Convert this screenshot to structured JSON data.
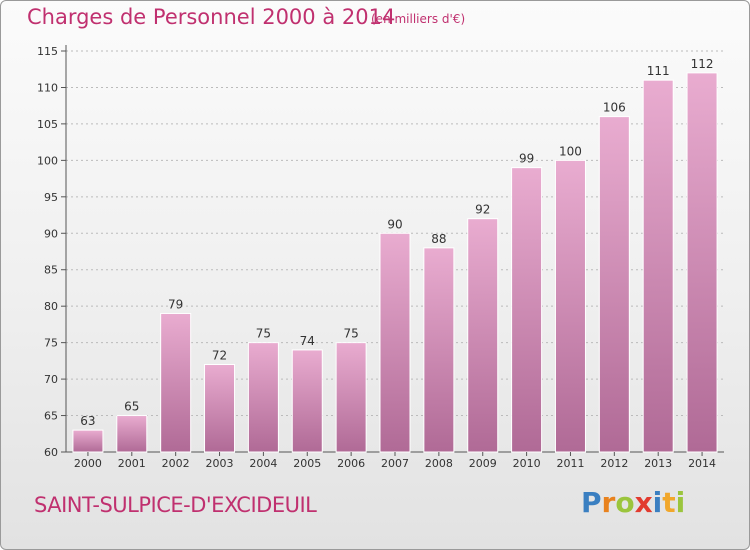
{
  "title": "Charges de Personnel 2000 à 2014",
  "subtitle": "(en milliers d'€)",
  "commune": "SAINT-SULPICE-D'EXCIDEUIL",
  "logo": {
    "text": "Proxiti",
    "letter_colors": [
      "#3a7fc1",
      "#e8821e",
      "#9bc53d",
      "#e23b2f",
      "#3a7fc1",
      "#f1a72b",
      "#9bc53d"
    ]
  },
  "colors": {
    "title": "#c0306f",
    "bar_top": "#e9acd0",
    "bar_bottom": "#b06a96",
    "axis": "#555555",
    "grid": "#bbbbbb"
  },
  "chart_data": {
    "type": "bar",
    "title": "Charges de Personnel 2000 à 2014",
    "categories": [
      "2000",
      "2001",
      "2002",
      "2003",
      "2004",
      "2005",
      "2006",
      "2007",
      "2008",
      "2009",
      "2010",
      "2011",
      "2012",
      "2013",
      "2014"
    ],
    "values": [
      63,
      65,
      79,
      72,
      75,
      74,
      75,
      90,
      88,
      92,
      99,
      100,
      106,
      111,
      112
    ],
    "ylim": [
      60,
      115
    ],
    "yticks": [
      60,
      65,
      70,
      75,
      80,
      85,
      90,
      95,
      100,
      105,
      110,
      115
    ],
    "grid": true,
    "xlabel": "",
    "ylabel": ""
  }
}
